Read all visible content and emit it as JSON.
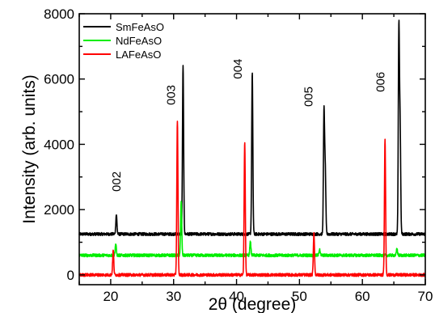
{
  "chart_data": {
    "type": "line",
    "xlabel": "2θ (degree)",
    "ylabel": "Intensity (arb. units)",
    "xlim": [
      15,
      70
    ],
    "ylim": [
      -300,
      8000
    ],
    "x_ticks": [
      20,
      30,
      40,
      50,
      60,
      70
    ],
    "y_ticks": [
      0,
      2000,
      4000,
      6000,
      8000
    ],
    "legend_position": "top-left",
    "series": [
      {
        "name": "SmFeAsO",
        "color": "#000000",
        "baseline": 1250,
        "peaks": [
          {
            "x": 20.9,
            "y": 1850
          },
          {
            "x": 31.5,
            "y": 6400
          },
          {
            "x": 42.5,
            "y": 6200
          },
          {
            "x": 53.9,
            "y": 5000
          },
          {
            "x": 54.1,
            "y": 3200
          },
          {
            "x": 65.8,
            "y": 7550
          },
          {
            "x": 66.0,
            "y": 4400
          }
        ]
      },
      {
        "name": "NdFeAsO",
        "color": "#00ee00",
        "baseline": 600,
        "peaks": [
          {
            "x": 20.8,
            "y": 950
          },
          {
            "x": 31.2,
            "y": 2250
          },
          {
            "x": 42.2,
            "y": 1000
          },
          {
            "x": 53.2,
            "y": 800
          },
          {
            "x": 65.5,
            "y": 800
          }
        ]
      },
      {
        "name": "LAFeAsO",
        "color": "#ff0000",
        "baseline": 0,
        "peaks": [
          {
            "x": 20.4,
            "y": 750
          },
          {
            "x": 30.6,
            "y": 4750
          },
          {
            "x": 41.3,
            "y": 4100
          },
          {
            "x": 52.3,
            "y": 1300
          },
          {
            "x": 63.6,
            "y": 4200
          }
        ]
      }
    ],
    "annotations": [
      {
        "text": "002",
        "x": 20.9,
        "y": 2550,
        "rotate": true
      },
      {
        "text": "003",
        "x": 29.6,
        "y": 5200,
        "rotate": true
      },
      {
        "text": "004",
        "x": 40.2,
        "y": 6000,
        "rotate": true
      },
      {
        "text": "005",
        "x": 51.4,
        "y": 5150,
        "rotate": true
      },
      {
        "text": "006",
        "x": 62.9,
        "y": 5600,
        "rotate": true
      }
    ]
  }
}
